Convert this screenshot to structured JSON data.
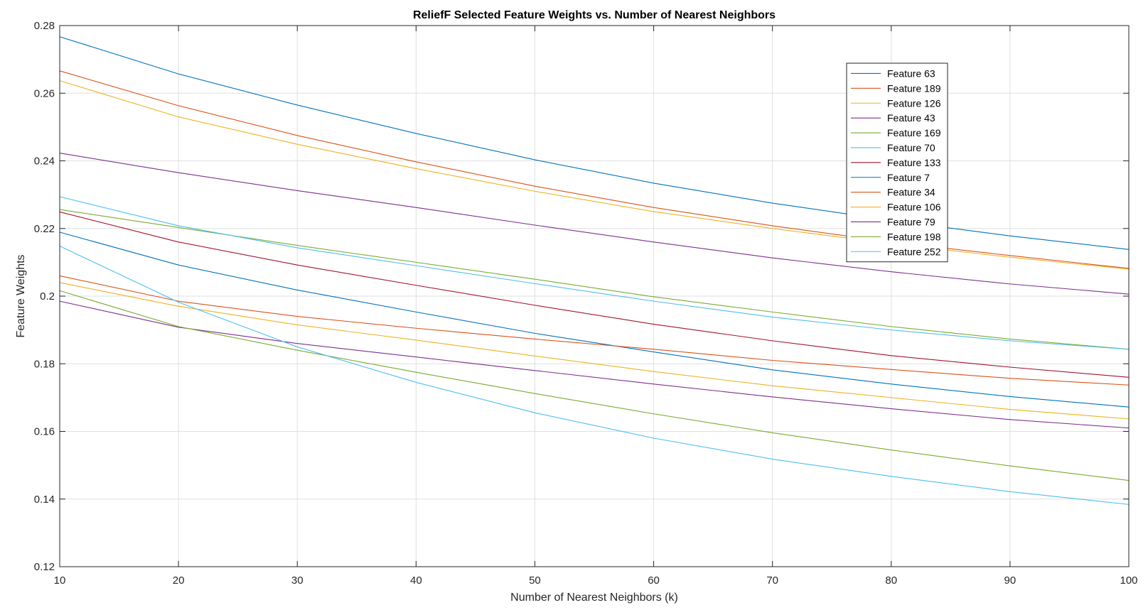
{
  "chart_data": {
    "type": "line",
    "title": "ReliefF Selected Feature Weights vs. Number of Nearest Neighbors",
    "xlabel": "Number of Nearest Neighbors (k)",
    "ylabel": "Feature Weights",
    "xlim": [
      10,
      100
    ],
    "ylim": [
      0.12,
      0.28
    ],
    "xticks": [
      10,
      20,
      30,
      40,
      50,
      60,
      70,
      80,
      90,
      100
    ],
    "xtick_labels": [
      "10",
      "20",
      "30",
      "40",
      "50",
      "60",
      "70",
      "80",
      "90",
      "100"
    ],
    "yticks": [
      0.12,
      0.14,
      0.16,
      0.18,
      0.2,
      0.22,
      0.24,
      0.26,
      0.28
    ],
    "ytick_labels": [
      "0.12",
      "0.14",
      "0.16",
      "0.18",
      "0.2",
      "0.22",
      "0.24",
      "0.26",
      "0.28"
    ],
    "grid": true,
    "legend_position": "top-right",
    "x": [
      10,
      20,
      30,
      40,
      50,
      60,
      70,
      80,
      90,
      100
    ],
    "series": [
      {
        "name": "Feature 63",
        "color": "#0072BD",
        "values": [
          0.2767,
          0.2657,
          0.2565,
          0.2481,
          0.2403,
          0.2334,
          0.2275,
          0.2224,
          0.2178,
          0.2138
        ]
      },
      {
        "name": "Feature 189",
        "color": "#D95319",
        "values": [
          0.2666,
          0.2563,
          0.2475,
          0.2397,
          0.2325,
          0.2262,
          0.2208,
          0.216,
          0.212,
          0.2082
        ]
      },
      {
        "name": "Feature 126",
        "color": "#EDB120",
        "values": [
          0.2637,
          0.253,
          0.2449,
          0.2377,
          0.231,
          0.225,
          0.22,
          0.2155,
          0.2115,
          0.208
        ]
      },
      {
        "name": "Feature 43",
        "color": "#7E2F8E",
        "values": [
          0.2423,
          0.2365,
          0.2312,
          0.2262,
          0.221,
          0.216,
          0.2113,
          0.2072,
          0.2036,
          0.2006
        ]
      },
      {
        "name": "Feature 169",
        "color": "#77AC30",
        "values": [
          0.2256,
          0.2203,
          0.215,
          0.21,
          0.205,
          0.1998,
          0.1953,
          0.191,
          0.1873,
          0.1843
        ]
      },
      {
        "name": "Feature 70",
        "color": "#4DBEEE",
        "values": [
          0.2294,
          0.2208,
          0.2143,
          0.209,
          0.2037,
          0.1985,
          0.1938,
          0.19,
          0.1868,
          0.1843
        ]
      },
      {
        "name": "Feature 133",
        "color": "#A2142F",
        "values": [
          0.2249,
          0.216,
          0.2092,
          0.2032,
          0.1973,
          0.1917,
          0.1868,
          0.1824,
          0.179,
          0.176
        ]
      },
      {
        "name": "Feature 7",
        "color": "#0072BD",
        "values": [
          0.2189,
          0.2092,
          0.2018,
          0.1953,
          0.189,
          0.1835,
          0.1782,
          0.174,
          0.1703,
          0.1672
        ]
      },
      {
        "name": "Feature 34",
        "color": "#D95319",
        "values": [
          0.206,
          0.1985,
          0.194,
          0.1905,
          0.1873,
          0.1843,
          0.181,
          0.1783,
          0.1757,
          0.1737
        ]
      },
      {
        "name": "Feature 106",
        "color": "#EDB120",
        "values": [
          0.204,
          0.197,
          0.1915,
          0.187,
          0.1823,
          0.1777,
          0.1735,
          0.17,
          0.1665,
          0.1637
        ]
      },
      {
        "name": "Feature 79",
        "color": "#7E2F8E",
        "values": [
          0.1985,
          0.1908,
          0.186,
          0.182,
          0.178,
          0.174,
          0.1702,
          0.1667,
          0.1635,
          0.161
        ]
      },
      {
        "name": "Feature 198",
        "color": "#77AC30",
        "values": [
          0.2016,
          0.191,
          0.184,
          0.1775,
          0.1712,
          0.1652,
          0.1596,
          0.1545,
          0.1498,
          0.1455
        ]
      },
      {
        "name": "Feature 252",
        "color": "#4DBEEE",
        "values": [
          0.2148,
          0.1982,
          0.185,
          0.1745,
          0.1655,
          0.158,
          0.1518,
          0.1467,
          0.1422,
          0.1384
        ]
      }
    ]
  }
}
